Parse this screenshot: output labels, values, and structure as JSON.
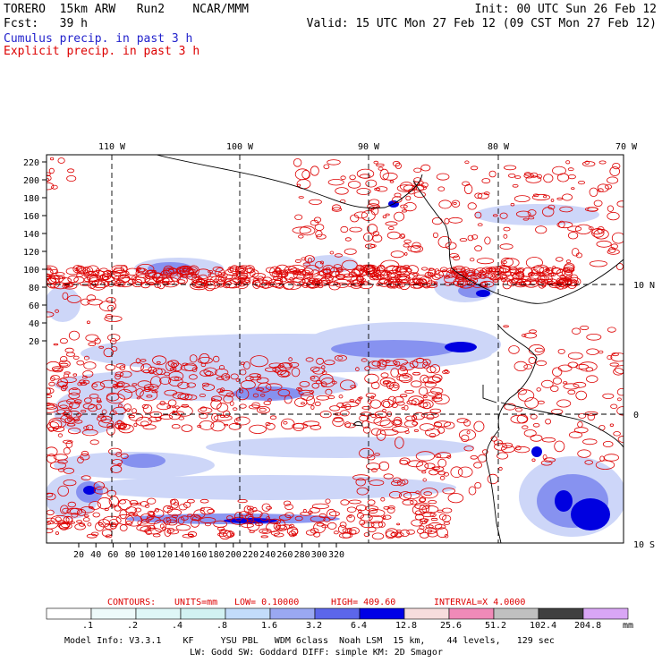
{
  "header": {
    "model": "TORERO",
    "resolution": "15km ARW",
    "run": "Run2",
    "org": "NCAR/MMM",
    "init": "Init: 00 UTC Sun 26 Feb 12",
    "fcst_label": "Fcst:",
    "fcst_value": "39 h",
    "valid": "Valid: 15 UTC Mon 27 Feb 12 (09 CST Mon 27 Feb 12)",
    "field1": "Cumulus precip. in past 3 h",
    "field2": "Explicit precip. in past 3 h"
  },
  "map": {
    "top_lon_labels": [
      "110 W",
      "100 W",
      "90 W",
      "80 W",
      "70 W"
    ],
    "right_lat_labels": [
      "10 N",
      "0",
      "10 S"
    ],
    "left_ticks": [
      "220",
      "200",
      "180",
      "160",
      "140",
      "120",
      "100",
      "80",
      "60",
      "40",
      "20"
    ],
    "bottom_ticks": [
      "20",
      "40",
      "60",
      "80",
      "100",
      "120",
      "140",
      "160",
      "180",
      "200",
      "220",
      "240",
      "260",
      "280",
      "300",
      "320"
    ],
    "colors": {
      "explicit_contours": "#dd0000",
      "cumulus_light": "#c8d2f8",
      "cumulus_mid": "#7a86ee",
      "cumulus_heavy": "#0000e0",
      "coastline": "#000000"
    }
  },
  "contours": {
    "label": "CONTOURS:",
    "units": "UNITS=mm",
    "low": "LOW= 0.10000",
    "high": "HIGH= 409.60",
    "interval": "INTERVAL=X 4.0000"
  },
  "colorbar": {
    "labels": [
      ".1",
      ".2",
      ".4",
      ".8",
      "1.6",
      "3.2",
      "6.4",
      "12.8",
      "25.6",
      "51.2",
      "102.4",
      "204.8"
    ],
    "unit": "mm",
    "colors": [
      "#ffffff",
      "#eefafa",
      "#dff7f7",
      "#d2f2f2",
      "#c3dcfa",
      "#9aa8f2",
      "#5c66ea",
      "#0000e6",
      "#f7dddd",
      "#f08ab8",
      "#c0c0c0",
      "#404040",
      "#d9a6f5"
    ]
  },
  "footer": {
    "line1": "Model Info: V3.3.1    KF     YSU PBL   WDM 6class  Noah LSM  15 km,    44 levels,   129 sec",
    "line2": "LW: Godd SW: Goddard DIFF: simple KM: 2D Smagor"
  }
}
